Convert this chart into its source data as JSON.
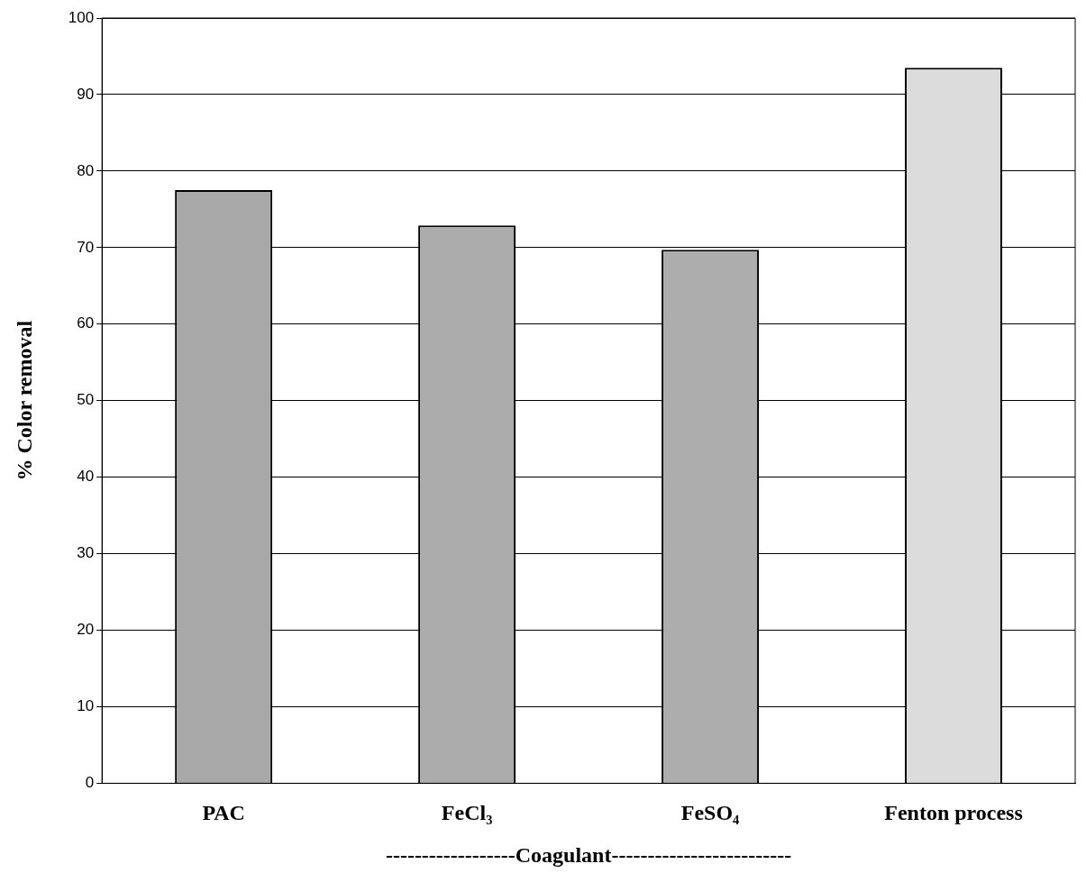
{
  "chart_data": {
    "type": "bar",
    "xlabel": "------------------Coagulant-------------------------",
    "ylabel": "% Color removal",
    "categories": [
      "PAC",
      "FeCl₃",
      "FeSO₄",
      "Fenton process"
    ],
    "values": [
      77.5,
      72.9,
      69.7,
      93.5
    ],
    "colors": [
      "#a8a8a8",
      "#acacac",
      "#adadad",
      "#dcdcdc"
    ],
    "ylim": [
      0,
      100
    ],
    "yticks": [
      0,
      10,
      20,
      30,
      40,
      50,
      60,
      70,
      80,
      90,
      100
    ],
    "grid": "y"
  }
}
